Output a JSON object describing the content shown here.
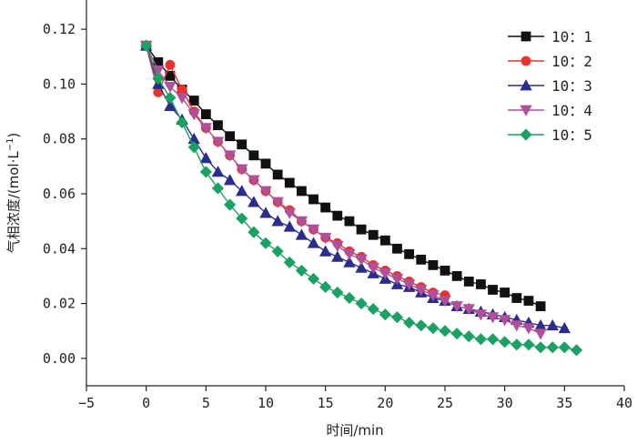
{
  "chart_data": {
    "type": "line",
    "xlabel": "时间/min",
    "ylabel_main": "气相浓度/",
    "ylabel_unit": "(mol·L",
    "ylabel_exp": "−1",
    "ylabel_close": ")",
    "xlim": [
      -5,
      40
    ],
    "ylim": [
      -0.01,
      0.13
    ],
    "x_ticks": [
      -5,
      0,
      5,
      10,
      15,
      20,
      25,
      30,
      35,
      40
    ],
    "x_tick_labels": [
      "−5",
      "0",
      "5",
      "10",
      "15",
      "20",
      "25",
      "30",
      "35",
      "40"
    ],
    "y_ticks": [
      0.0,
      0.02,
      0.04,
      0.06,
      0.08,
      0.1,
      0.12
    ],
    "y_tick_labels": [
      "0.00",
      "0.02",
      "0.04",
      "0.06",
      "0.08",
      "0.10",
      "0.12"
    ],
    "grid": false,
    "legend_position": "top-right",
    "series": [
      {
        "name": "10：1",
        "color": "#111111",
        "marker": "square",
        "x": [
          0,
          1,
          2,
          3,
          4,
          5,
          6,
          7,
          8,
          9,
          10,
          11,
          12,
          13,
          14,
          15,
          16,
          17,
          18,
          19,
          20,
          21,
          22,
          23,
          24,
          25,
          26,
          27,
          28,
          29,
          30,
          31,
          32,
          33
        ],
        "y": [
          0.114,
          0.108,
          0.103,
          0.098,
          0.094,
          0.089,
          0.085,
          0.081,
          0.078,
          0.074,
          0.071,
          0.067,
          0.064,
          0.061,
          0.058,
          0.055,
          0.052,
          0.05,
          0.047,
          0.045,
          0.043,
          0.04,
          0.038,
          0.036,
          0.034,
          0.032,
          0.03,
          0.028,
          0.027,
          0.025,
          0.024,
          0.022,
          0.021,
          0.019
        ]
      },
      {
        "name": "10：2",
        "color": "#e8322a",
        "marker": "circle",
        "x": [
          0,
          1,
          2,
          3,
          4,
          5,
          6,
          7,
          8,
          9,
          10,
          11,
          12,
          13,
          14,
          15,
          16,
          17,
          18,
          19,
          20,
          21,
          22,
          23,
          24,
          25
        ],
        "y": [
          0.114,
          0.097,
          0.107,
          0.098,
          0.09,
          0.084,
          0.079,
          0.074,
          0.069,
          0.065,
          0.061,
          0.057,
          0.054,
          0.05,
          0.047,
          0.044,
          0.042,
          0.039,
          0.037,
          0.034,
          0.032,
          0.03,
          0.028,
          0.026,
          0.024,
          0.023
        ]
      },
      {
        "name": "10：3",
        "color": "#2b2c8c",
        "marker": "triangle-up",
        "x": [
          0,
          1,
          2,
          3,
          4,
          5,
          6,
          7,
          8,
          9,
          10,
          11,
          12,
          13,
          14,
          15,
          16,
          17,
          18,
          19,
          20,
          21,
          22,
          23,
          24,
          25,
          26,
          27,
          28,
          29,
          30,
          31,
          32,
          33,
          34,
          35
        ],
        "y": [
          0.114,
          0.1,
          0.092,
          0.087,
          0.08,
          0.073,
          0.068,
          0.065,
          0.061,
          0.057,
          0.053,
          0.05,
          0.048,
          0.045,
          0.042,
          0.039,
          0.037,
          0.035,
          0.033,
          0.031,
          0.029,
          0.027,
          0.026,
          0.024,
          0.022,
          0.021,
          0.019,
          0.018,
          0.017,
          0.016,
          0.015,
          0.014,
          0.013,
          0.012,
          0.012,
          0.011
        ]
      },
      {
        "name": "10：4",
        "color": "#b0509a",
        "marker": "triangle-down",
        "x": [
          0,
          1,
          2,
          3,
          4,
          5,
          6,
          7,
          8,
          9,
          10,
          11,
          12,
          13,
          14,
          15,
          16,
          17,
          18,
          19,
          20,
          21,
          22,
          23,
          24,
          25,
          26,
          27,
          28,
          29,
          30,
          31,
          32,
          33
        ],
        "y": [
          0.114,
          0.105,
          0.099,
          0.095,
          0.089,
          0.084,
          0.079,
          0.074,
          0.069,
          0.065,
          0.061,
          0.057,
          0.053,
          0.05,
          0.047,
          0.044,
          0.041,
          0.038,
          0.036,
          0.033,
          0.031,
          0.029,
          0.027,
          0.025,
          0.023,
          0.021,
          0.019,
          0.018,
          0.016,
          0.015,
          0.014,
          0.012,
          0.011,
          0.009
        ]
      },
      {
        "name": "10：5",
        "color": "#1aa163",
        "marker": "diamond",
        "x": [
          0,
          1,
          2,
          3,
          4,
          5,
          6,
          7,
          8,
          9,
          10,
          11,
          12,
          13,
          14,
          15,
          16,
          17,
          18,
          19,
          20,
          21,
          22,
          23,
          24,
          25,
          26,
          27,
          28,
          29,
          30,
          31,
          32,
          33,
          34,
          35,
          36
        ],
        "y": [
          0.114,
          0.102,
          0.095,
          0.086,
          0.077,
          0.068,
          0.062,
          0.056,
          0.051,
          0.046,
          0.042,
          0.039,
          0.035,
          0.032,
          0.029,
          0.026,
          0.024,
          0.022,
          0.02,
          0.018,
          0.016,
          0.015,
          0.013,
          0.012,
          0.011,
          0.01,
          0.009,
          0.008,
          0.007,
          0.007,
          0.006,
          0.005,
          0.005,
          0.004,
          0.004,
          0.004,
          0.003
        ]
      }
    ]
  }
}
